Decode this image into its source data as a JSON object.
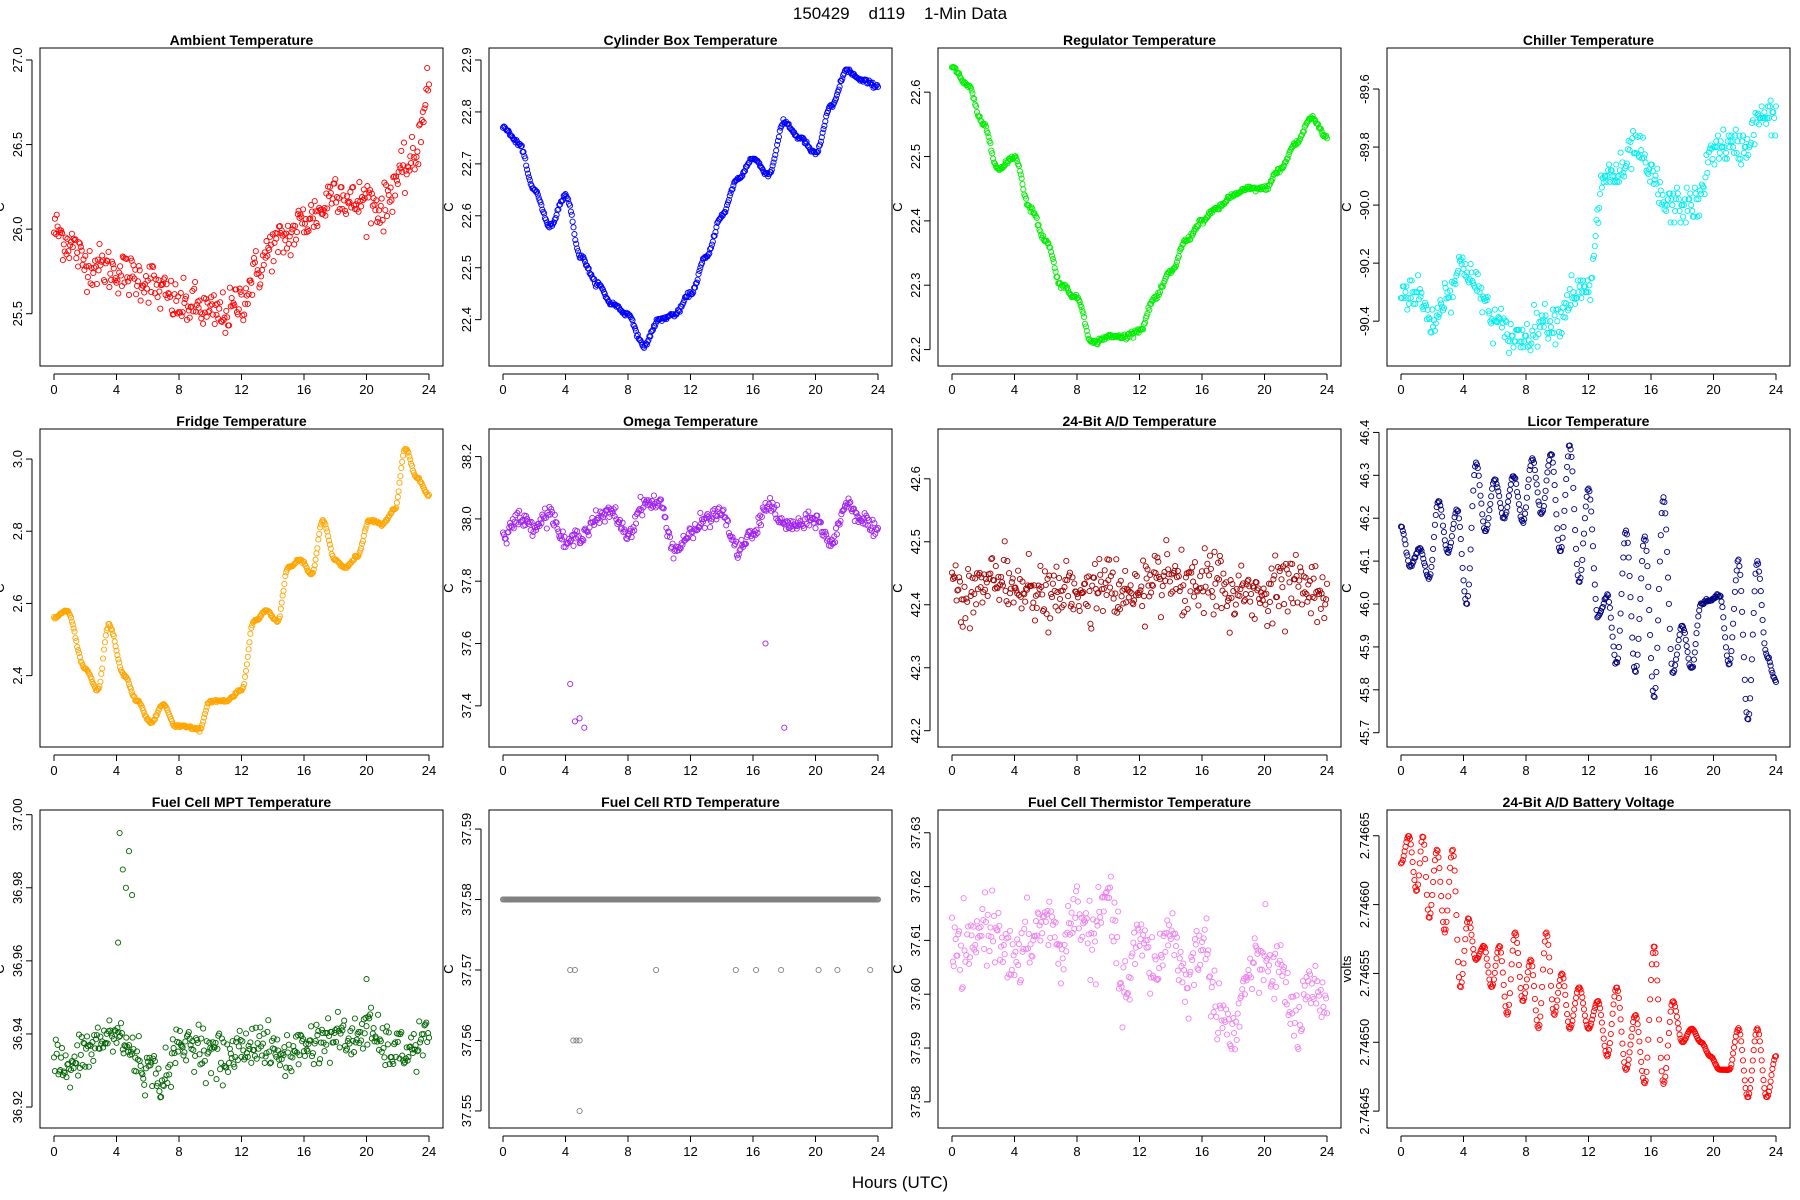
{
  "page": {
    "main_title": "150429    d119    1-Min Data",
    "x_axis_label": "Hours (UTC)"
  },
  "chart_data": [
    {
      "type": "scatter",
      "title": "Ambient Temperature",
      "ylabel": "C",
      "color": "#ff0000",
      "xlim": [
        0,
        24
      ],
      "ylim": [
        25.25,
        27.0
      ],
      "yticks": [
        25.5,
        26.0,
        26.5,
        27.0
      ],
      "ytick_labels": [
        "25.5",
        "26.0",
        "26.5",
        "27.0"
      ],
      "xticks": [
        0,
        4,
        8,
        12,
        16,
        20,
        24
      ],
      "xtick_labels": [
        "0",
        "4",
        "8",
        "12",
        "16",
        "20",
        "24"
      ],
      "noise": 0.13,
      "x": [
        0,
        1,
        2,
        3,
        4,
        5,
        6,
        7,
        8,
        9,
        10,
        11,
        12,
        13,
        14,
        15,
        16,
        17,
        18,
        19,
        20,
        21,
        22,
        23,
        24
      ],
      "values": [
        26.0,
        25.92,
        25.8,
        25.78,
        25.75,
        25.72,
        25.7,
        25.62,
        25.55,
        25.55,
        25.5,
        25.5,
        25.58,
        25.75,
        25.9,
        25.95,
        26.05,
        26.1,
        26.25,
        26.15,
        26.18,
        26.12,
        26.3,
        26.4,
        26.85
      ]
    },
    {
      "type": "scatter",
      "title": "Cylinder Box Temperature",
      "ylabel": "C",
      "color": "#0000ff",
      "xlim": [
        0,
        24
      ],
      "ylim": [
        22.33,
        22.9
      ],
      "yticks": [
        22.4,
        22.5,
        22.6,
        22.7,
        22.8,
        22.9
      ],
      "ytick_labels": [
        "22.4",
        "22.5",
        "22.6",
        "22.7",
        "22.8",
        "22.9"
      ],
      "xticks": [
        0,
        4,
        8,
        12,
        16,
        20,
        24
      ],
      "xtick_labels": [
        "0",
        "4",
        "8",
        "12",
        "16",
        "20",
        "24"
      ],
      "noise": 0.004,
      "x": [
        0,
        1,
        2,
        3,
        4,
        5,
        6,
        7,
        8,
        9,
        10,
        11,
        12,
        13,
        14,
        15,
        16,
        17,
        18,
        19,
        20,
        21,
        22,
        23,
        24
      ],
      "values": [
        22.77,
        22.74,
        22.65,
        22.58,
        22.64,
        22.52,
        22.47,
        22.43,
        22.41,
        22.35,
        22.4,
        22.41,
        22.45,
        22.52,
        22.6,
        22.67,
        22.71,
        22.68,
        22.78,
        22.75,
        22.72,
        22.81,
        22.88,
        22.86,
        22.85
      ]
    },
    {
      "type": "scatter",
      "title": "Regulator Temperature",
      "ylabel": "C",
      "color": "#00ee00",
      "xlim": [
        0,
        24
      ],
      "ylim": [
        22.19,
        22.65
      ],
      "yticks": [
        22.2,
        22.3,
        22.4,
        22.5,
        22.6
      ],
      "ytick_labels": [
        "22.2",
        "22.3",
        "22.4",
        "22.5",
        "22.6"
      ],
      "xticks": [
        0,
        4,
        8,
        12,
        16,
        20,
        24
      ],
      "xtick_labels": [
        "0",
        "4",
        "8",
        "12",
        "16",
        "20",
        "24"
      ],
      "noise": 0.004,
      "x": [
        0,
        1,
        2,
        3,
        4,
        5,
        6,
        7,
        8,
        9,
        10,
        11,
        12,
        13,
        14,
        15,
        16,
        17,
        18,
        19,
        20,
        21,
        22,
        23,
        24
      ],
      "values": [
        22.64,
        22.61,
        22.55,
        22.48,
        22.5,
        22.42,
        22.37,
        22.3,
        22.28,
        22.21,
        22.22,
        22.22,
        22.23,
        22.28,
        22.32,
        22.37,
        22.4,
        22.42,
        22.44,
        22.45,
        22.45,
        22.48,
        22.52,
        22.56,
        22.53
      ]
    },
    {
      "type": "scatter",
      "title": "Chiller Temperature",
      "ylabel": "C",
      "color": "#00eeee",
      "xlim": [
        0,
        24
      ],
      "ylim": [
        -90.52,
        -89.5
      ],
      "yticks": [
        -90.4,
        -90.2,
        -90.0,
        -89.8,
        -89.6
      ],
      "ytick_labels": [
        "-90.4",
        "-90.2",
        "-90.0",
        "-89.8",
        "-89.6"
      ],
      "xticks": [
        0,
        4,
        8,
        12,
        16,
        20,
        24
      ],
      "xtick_labels": [
        "0",
        "4",
        "8",
        "12",
        "16",
        "20",
        "24"
      ],
      "noise": 0.0,
      "quantum": 0.02,
      "x": [
        0,
        1,
        2,
        3,
        4,
        5,
        6,
        7,
        8,
        9,
        10,
        11,
        12,
        13,
        14,
        15,
        16,
        17,
        18,
        19,
        20,
        21,
        22,
        23,
        24
      ],
      "values": [
        -90.3,
        -90.3,
        -90.4,
        -90.3,
        -90.2,
        -90.3,
        -90.4,
        -90.45,
        -90.45,
        -90.4,
        -90.4,
        -90.3,
        -90.3,
        -89.9,
        -89.9,
        -89.8,
        -89.9,
        -90.0,
        -90.0,
        -90.0,
        -89.8,
        -89.8,
        -89.8,
        -89.7,
        -89.7
      ]
    },
    {
      "type": "scatter",
      "title": "Fridge Temperature",
      "ylabel": "C",
      "color": "#ffa500",
      "xlim": [
        0,
        24
      ],
      "ylim": [
        2.23,
        3.05
      ],
      "yticks": [
        2.4,
        2.6,
        2.8,
        3.0
      ],
      "ytick_labels": [
        "2.4",
        "2.6",
        "2.8",
        "3.0"
      ],
      "xticks": [
        0,
        4,
        8,
        12,
        16,
        20,
        24
      ],
      "xtick_labels": [
        "0",
        "4",
        "8",
        "12",
        "16",
        "20",
        "24"
      ],
      "noise": 0.004,
      "x": [
        0,
        0.8,
        2,
        2.8,
        3.5,
        4.5,
        5.3,
        6.2,
        7,
        7.8,
        8.5,
        9.3,
        10,
        11,
        12,
        12.8,
        13.6,
        14.3,
        15,
        15.8,
        16.5,
        17.2,
        18,
        18.7,
        19.4,
        20.2,
        21,
        21.8,
        22.5,
        23.2,
        24
      ],
      "values": [
        2.56,
        2.58,
        2.42,
        2.36,
        2.54,
        2.4,
        2.33,
        2.27,
        2.32,
        2.26,
        2.26,
        2.25,
        2.33,
        2.33,
        2.36,
        2.55,
        2.58,
        2.55,
        2.7,
        2.72,
        2.68,
        2.83,
        2.72,
        2.7,
        2.73,
        2.83,
        2.82,
        2.86,
        3.03,
        2.95,
        2.9
      ]
    },
    {
      "type": "scatter",
      "title": "Omega Temperature",
      "ylabel": "C",
      "color": "#a020f0",
      "xlim": [
        0,
        24
      ],
      "ylim": [
        37.3,
        38.25
      ],
      "yticks": [
        37.4,
        37.6,
        37.8,
        38.0,
        38.2
      ],
      "ytick_labels": [
        "37.4",
        "37.6",
        "37.8",
        "38.0",
        "38.2"
      ],
      "xticks": [
        0,
        4,
        8,
        12,
        16,
        20,
        24
      ],
      "xtick_labels": [
        "0",
        "4",
        "8",
        "12",
        "16",
        "20",
        "24"
      ],
      "noise": 0.025,
      "x": [
        0,
        1,
        2,
        3,
        4,
        5,
        6,
        7,
        8,
        9,
        10,
        11,
        12,
        13,
        14,
        15,
        16,
        17,
        18,
        19,
        20,
        21,
        22,
        23,
        24
      ],
      "values": [
        37.95,
        38.0,
        37.98,
        38.02,
        37.92,
        37.95,
        38.0,
        38.02,
        37.95,
        38.05,
        38.05,
        37.9,
        37.95,
        38.0,
        38.02,
        37.9,
        37.95,
        38.05,
        37.98,
        37.98,
        38.0,
        37.92,
        38.05,
        38.0,
        37.95
      ],
      "outliers": [
        [
          4.3,
          37.47
        ],
        [
          4.6,
          37.35
        ],
        [
          4.9,
          37.36
        ],
        [
          5.2,
          37.33
        ],
        [
          16.8,
          37.6
        ],
        [
          18,
          37.33
        ]
      ]
    },
    {
      "type": "scatter",
      "title": "24-Bit A/D Temperature",
      "ylabel": "C",
      "color": "#a00000",
      "xlim": [
        0,
        24
      ],
      "ylim": [
        42.19,
        42.66
      ],
      "yticks": [
        42.2,
        42.3,
        42.4,
        42.5,
        42.6
      ],
      "ytick_labels": [
        "42.2",
        "42.3",
        "42.4",
        "42.5",
        "42.6"
      ],
      "xticks": [
        0,
        4,
        8,
        12,
        16,
        20,
        24
      ],
      "xtick_labels": [
        "0",
        "4",
        "8",
        "12",
        "16",
        "20",
        "24"
      ],
      "noise": 0.045,
      "quantum": 0.01,
      "x": [
        0,
        1,
        2,
        3,
        4,
        5,
        6,
        7,
        8,
        9,
        10,
        11,
        12,
        13,
        14,
        15,
        16,
        17,
        18,
        19,
        20,
        21,
        22,
        23,
        24
      ],
      "values": [
        42.44,
        42.42,
        42.43,
        42.44,
        42.42,
        42.43,
        42.41,
        42.42,
        42.42,
        42.43,
        42.43,
        42.42,
        42.42,
        42.43,
        42.44,
        42.42,
        42.43,
        42.44,
        42.41,
        42.42,
        42.42,
        42.43,
        42.44,
        42.42,
        42.4
      ]
    },
    {
      "type": "scatter",
      "title": "Licor Temperature",
      "ylabel": "C",
      "color": "#00007f",
      "xlim": [
        0,
        24
      ],
      "ylim": [
        45.69,
        46.38
      ],
      "yticks": [
        45.7,
        45.8,
        45.9,
        46.0,
        46.1,
        46.2,
        46.3,
        46.4
      ],
      "ytick_labels": [
        "45.7",
        "45.8",
        "45.9",
        "46.0",
        "46.1",
        "46.2",
        "46.3",
        "46.4"
      ],
      "xticks": [
        0,
        4,
        8,
        12,
        16,
        20,
        24
      ],
      "xtick_labels": [
        "0",
        "4",
        "8",
        "12",
        "16",
        "20",
        "24"
      ],
      "noise": 0.004,
      "x": [
        0,
        0.6,
        1.2,
        1.8,
        2.4,
        3,
        3.6,
        4.2,
        4.8,
        5.4,
        6,
        6.6,
        7.2,
        7.8,
        8.4,
        9,
        9.6,
        10.2,
        10.8,
        11.4,
        12,
        12.6,
        13.2,
        13.8,
        14.4,
        15,
        15.6,
        16.2,
        16.8,
        17.4,
        18,
        18.6,
        19.2,
        19.8,
        20.4,
        21,
        21.6,
        22.2,
        22.8,
        23.4,
        24
      ],
      "values": [
        46.18,
        46.09,
        46.13,
        46.06,
        46.24,
        46.12,
        46.22,
        46.0,
        46.33,
        46.17,
        46.29,
        46.2,
        46.3,
        46.19,
        46.34,
        46.21,
        46.35,
        46.12,
        46.37,
        46.05,
        46.27,
        45.97,
        46.02,
        45.86,
        46.17,
        45.84,
        46.16,
        45.78,
        46.25,
        45.84,
        45.95,
        45.85,
        46.0,
        46.01,
        46.02,
        45.86,
        46.1,
        45.73,
        46.1,
        45.88,
        45.82
      ]
    },
    {
      "type": "scatter",
      "title": "Fuel Cell MPT Temperature",
      "ylabel": "C",
      "color": "#006400",
      "xlim": [
        0,
        24
      ],
      "ylim": [
        36.917,
        36.998
      ],
      "yticks": [
        36.92,
        36.94,
        36.96,
        36.98,
        37.0
      ],
      "ytick_labels": [
        "36.92",
        "36.94",
        "36.96",
        "36.98",
        "37.00"
      ],
      "xticks": [
        0,
        4,
        8,
        12,
        16,
        20,
        24
      ],
      "xtick_labels": [
        "0",
        "4",
        "8",
        "12",
        "16",
        "20",
        "24"
      ],
      "noise": 0.006,
      "x": [
        0,
        1,
        2,
        3,
        4,
        5,
        6,
        7,
        8,
        9,
        10,
        11,
        12,
        13,
        14,
        15,
        16,
        17,
        18,
        19,
        20,
        21,
        22,
        23,
        24
      ],
      "values": [
        36.933,
        36.93,
        36.935,
        36.938,
        36.94,
        36.935,
        36.93,
        36.928,
        36.936,
        36.938,
        36.935,
        36.933,
        36.936,
        36.938,
        36.935,
        36.934,
        36.937,
        36.938,
        36.94,
        36.938,
        36.942,
        36.937,
        36.935,
        36.936,
        36.94
      ],
      "outliers": [
        [
          4.2,
          36.995
        ],
        [
          4.4,
          36.985
        ],
        [
          4.6,
          36.98
        ],
        [
          4.8,
          36.99
        ],
        [
          5,
          36.978
        ],
        [
          4.1,
          36.965
        ],
        [
          20,
          36.955
        ]
      ]
    },
    {
      "type": "scatter",
      "title": "Fuel Cell RTD Temperature",
      "ylabel": "C",
      "color": "#808080",
      "xlim": [
        0,
        24
      ],
      "ylim": [
        37.549,
        37.591
      ],
      "yticks": [
        37.55,
        37.56,
        37.57,
        37.58,
        37.59
      ],
      "ytick_labels": [
        "37.55",
        "37.56",
        "37.57",
        "37.58",
        "37.59"
      ],
      "xticks": [
        0,
        4,
        8,
        12,
        16,
        20,
        24
      ],
      "xtick_labels": [
        "0",
        "4",
        "8",
        "12",
        "16",
        "20",
        "24"
      ],
      "noise": 0.0,
      "x": [
        0,
        24
      ],
      "values": [
        37.58,
        37.58
      ],
      "outliers": [
        [
          4.5,
          37.56
        ],
        [
          4.7,
          37.56
        ],
        [
          4.9,
          37.56
        ],
        [
          4.3,
          37.57
        ],
        [
          4.6,
          37.57
        ],
        [
          4.9,
          37.55
        ],
        [
          9.8,
          37.57
        ],
        [
          14.9,
          37.57
        ],
        [
          16.2,
          37.57
        ],
        [
          17.8,
          37.57
        ],
        [
          20.2,
          37.57
        ],
        [
          21.4,
          37.57
        ],
        [
          23.5,
          37.57
        ]
      ]
    },
    {
      "type": "scatter",
      "title": "Fuel Cell Thermistor Temperature",
      "ylabel": "C",
      "color": "#ee82ee",
      "xlim": [
        0,
        24
      ],
      "ylim": [
        37.577,
        37.632
      ],
      "yticks": [
        37.58,
        37.59,
        37.6,
        37.61,
        37.62,
        37.63
      ],
      "ytick_labels": [
        "37.58",
        "37.59",
        "37.60",
        "37.61",
        "37.62",
        "37.63"
      ],
      "xticks": [
        0,
        4,
        8,
        12,
        16,
        20,
        24
      ],
      "xtick_labels": [
        "0",
        "4",
        "8",
        "12",
        "16",
        "20",
        "24"
      ],
      "noise": 0.006,
      "x": [
        0,
        1,
        2,
        3,
        4,
        5,
        6,
        7,
        8,
        9,
        10,
        11,
        12,
        13,
        14,
        15,
        16,
        17,
        18,
        19,
        20,
        21,
        22,
        23,
        24
      ],
      "values": [
        37.608,
        37.607,
        37.613,
        37.612,
        37.605,
        37.61,
        37.614,
        37.608,
        37.616,
        37.61,
        37.618,
        37.6,
        37.61,
        37.605,
        37.612,
        37.602,
        37.61,
        37.598,
        37.592,
        37.604,
        37.606,
        37.604,
        37.595,
        37.6,
        37.596
      ]
    },
    {
      "type": "scatter",
      "title": "24-Bit A/D Battery Voltage",
      "ylabel": "volts",
      "color": "#ff0000",
      "xlim": [
        0,
        24
      ],
      "ylim": [
        2.746445,
        2.74666
      ],
      "yticks": [
        2.74645,
        2.7465,
        2.74655,
        2.7466,
        2.74665
      ],
      "ytick_labels": [
        "2.74645",
        "2.74650",
        "2.74655",
        "2.74660",
        "2.74665"
      ],
      "xticks": [
        0,
        4,
        8,
        12,
        16,
        20,
        24
      ],
      "xtick_labels": [
        "0",
        "4",
        "8",
        "12",
        "16",
        "20",
        "24"
      ],
      "noise": 3e-07,
      "x": [
        0,
        0.5,
        1,
        1.4,
        1.8,
        2.3,
        2.8,
        3.3,
        3.8,
        4.3,
        4.8,
        5.3,
        5.8,
        6.3,
        6.8,
        7.3,
        7.8,
        8.3,
        8.8,
        9.3,
        9.8,
        10.3,
        10.8,
        11.4,
        12,
        12.6,
        13.2,
        13.8,
        14.4,
        15,
        15.6,
        16.2,
        16.8,
        17.4,
        18,
        18.6,
        19.2,
        19.8,
        20.4,
        21,
        21.6,
        22.2,
        22.8,
        23.4,
        24
      ],
      "values": [
        2.74663,
        2.74665,
        2.74661,
        2.74665,
        2.74659,
        2.74664,
        2.74658,
        2.74664,
        2.74654,
        2.74659,
        2.74656,
        2.74657,
        2.74654,
        2.74657,
        2.74652,
        2.74658,
        2.74653,
        2.74656,
        2.74651,
        2.74658,
        2.74652,
        2.74655,
        2.74651,
        2.74654,
        2.74651,
        2.74653,
        2.74649,
        2.74654,
        2.74648,
        2.74652,
        2.74647,
        2.74657,
        2.74647,
        2.74653,
        2.7465,
        2.74651,
        2.7465,
        2.74649,
        2.74648,
        2.74648,
        2.74651,
        2.74646,
        2.74651,
        2.74646,
        2.74649
      ]
    }
  ]
}
